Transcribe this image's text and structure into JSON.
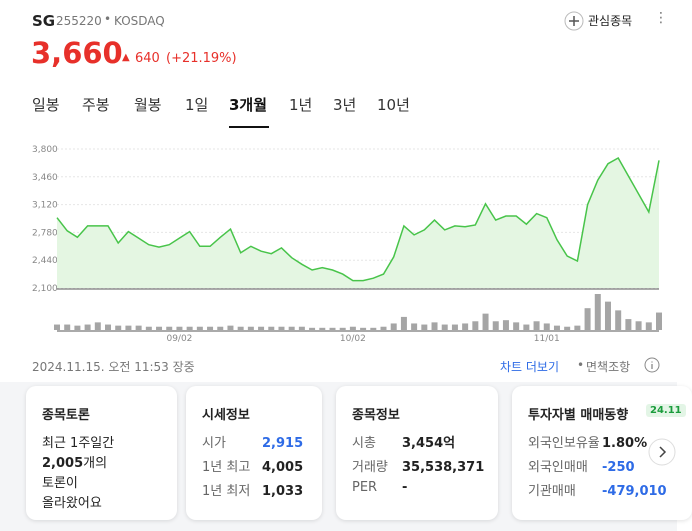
{
  "header": {
    "name": "SG",
    "code": "255220",
    "market": "KOSDAQ",
    "watch": "관심종목",
    "price": "3,660",
    "change": "640",
    "change_pct": "(+21.19%)"
  },
  "tabs": [
    "일봉",
    "주봉",
    "월봉",
    "1일",
    "3개월",
    "1년",
    "3년",
    "10년"
  ],
  "active_tab": 4,
  "chart_data": {
    "type": "line",
    "color": "#48c44a",
    "fill": "#e4f6e2",
    "volume_color": "#a5a5a5",
    "grid": true,
    "categories": [
      null,
      null,
      null,
      null,
      null,
      null,
      null,
      null,
      null,
      null,
      null,
      null,
      "09/02",
      null,
      null,
      null,
      null,
      null,
      null,
      null,
      null,
      null,
      null,
      null,
      null,
      null,
      null,
      null,
      null,
      "10/02",
      null,
      null,
      null,
      null,
      null,
      null,
      null,
      null,
      null,
      null,
      null,
      null,
      null,
      null,
      null,
      null,
      null,
      null,
      "11/01",
      null,
      null,
      null,
      null,
      null,
      null,
      null,
      null,
      null,
      null,
      null
    ],
    "values": [
      2960,
      2800,
      2720,
      2860,
      2860,
      2860,
      2650,
      2790,
      2710,
      2630,
      2600,
      2630,
      2710,
      2790,
      2610,
      2610,
      2720,
      2820,
      2530,
      2610,
      2550,
      2520,
      2590,
      2470,
      2390,
      2320,
      2350,
      2320,
      2270,
      2190,
      2190,
      2220,
      2270,
      2480,
      2860,
      2750,
      2810,
      2930,
      2810,
      2860,
      2850,
      2870,
      3130,
      2930,
      2980,
      2980,
      2880,
      3010,
      2960,
      2690,
      2490,
      2430,
      3120,
      3420,
      3620,
      3690,
      3470,
      3250,
      3030,
      3660
    ],
    "volume": [
      5,
      5,
      4,
      5,
      7,
      5,
      4,
      4,
      4,
      3,
      3,
      3,
      3,
      3,
      3,
      3,
      3,
      4,
      3,
      3,
      3,
      3,
      3,
      3,
      3,
      2,
      2,
      2,
      2,
      3,
      2,
      2,
      3,
      6,
      12,
      6,
      5,
      7,
      5,
      5,
      6,
      8,
      15,
      8,
      9,
      7,
      5,
      8,
      6,
      4,
      3,
      4,
      20,
      33,
      26,
      18,
      10,
      8,
      7,
      16
    ],
    "ylim": [
      2100,
      3800
    ],
    "yticks": [
      {
        "value": 3800,
        "label": "3,800"
      },
      {
        "value": 3460,
        "label": "3,460"
      },
      {
        "value": 3120,
        "label": "3,120"
      },
      {
        "value": 2780,
        "label": "2,780"
      },
      {
        "value": 2440,
        "label": "2,440"
      },
      {
        "value": 2100,
        "label": "2,100"
      }
    ]
  },
  "footer": {
    "timestamp": "2024.11.15. 오전 11:53 장중",
    "chart_more": "차트 더보기",
    "disclaimer": "면책조항"
  },
  "cards": [
    {
      "title": "종목토론",
      "body": [
        "최근 1주일간",
        "2,005",
        "개의",
        "토론이",
        "올라왔어요"
      ]
    },
    {
      "title": "시세정보",
      "rows": [
        [
          "시가",
          "2,915"
        ],
        [
          "1년 최고",
          "4,005"
        ],
        [
          "1년 최저",
          "1,033"
        ]
      ]
    },
    {
      "title": "종목정보",
      "rows": [
        [
          "시총",
          "3,454억"
        ],
        [
          "거래량",
          "35,538,371"
        ],
        [
          "PER",
          "-"
        ]
      ]
    },
    {
      "title": "투자자별 매매동향",
      "badge": "24.11",
      "rows": [
        [
          "외국인보유율",
          "1.80%"
        ],
        [
          "외국인매매",
          "-250"
        ],
        [
          "기관매매",
          "-479,010"
        ]
      ]
    }
  ]
}
